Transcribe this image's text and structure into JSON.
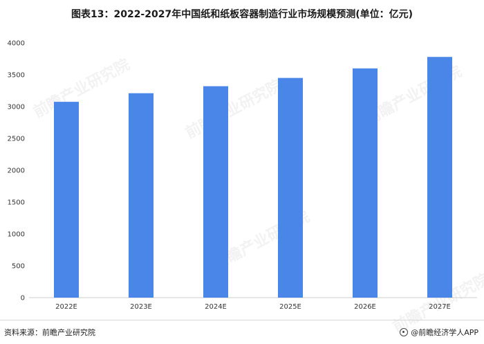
{
  "chart_data": {
    "type": "bar",
    "title": "图表13：2022-2027年中国纸和纸板容器制造行业市场规模预测(单位：亿元)",
    "categories": [
      "2022E",
      "2023E",
      "2024E",
      "2025E",
      "2026E",
      "2027E"
    ],
    "values": [
      3075,
      3210,
      3320,
      3450,
      3600,
      3780
    ],
    "xlabel": "",
    "ylabel": "",
    "ylim": [
      0,
      4000
    ],
    "yticks": [
      "0",
      "500",
      "1000",
      "1500",
      "2000",
      "2500",
      "3000",
      "3500",
      "4000"
    ],
    "grid": false,
    "legend": "none",
    "bar_color": "#4a86e8"
  },
  "footer": {
    "source": "资料来源：前瞻产业研究院",
    "credit": "@前瞻经济学人APP"
  },
  "watermark_text": "前瞻产业研究院"
}
